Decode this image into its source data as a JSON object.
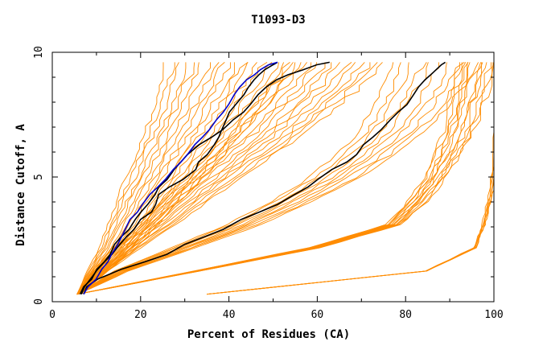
{
  "chart_data": {
    "type": "line",
    "title": "T1093-D3",
    "xlabel": "Percent of Residues (CA)",
    "ylabel": "Distance Cutoff, A",
    "xlim": [
      0,
      100
    ],
    "ylim": [
      0,
      10
    ],
    "x_ticks": [
      0,
      20,
      40,
      60,
      80,
      100
    ],
    "y_ticks": [
      0,
      5,
      10
    ],
    "x_tick_labels": [
      "0",
      "20",
      "40",
      "60",
      "80",
      "100"
    ],
    "y_tick_labels": [
      "0",
      "5",
      "10"
    ],
    "grid": false,
    "legend": "none",
    "colors": {
      "background_series": "#ff8c00",
      "highlight_black": "#000000",
      "highlight_blue": "#0000cc",
      "axis": "#000000"
    },
    "background_bands": [
      {
        "count": 20,
        "x_base": [
          5.6,
          7.9,
          10.6,
          12.6,
          14.5,
          16.8,
          18.6,
          20.8,
          22.6,
          24.1,
          26.0
        ],
        "spread": 30,
        "y_top": 9.6
      },
      {
        "count": 14,
        "x_base": [
          5.6,
          9,
          14,
          19.5,
          24.5,
          30,
          35.5,
          41,
          45.5,
          50,
          53.5
        ],
        "spread": 22,
        "y_top": 9.6
      },
      {
        "count": 10,
        "x_base": [
          5.6,
          14,
          27,
          39.5,
          49.5,
          58,
          64.5,
          69.5,
          72.5,
          75,
          77
        ],
        "spread": 20,
        "y_top": 9.6
      },
      {
        "count": 12,
        "x_base": [
          5.6,
          32,
          58,
          75.5,
          80.5,
          84,
          86.5,
          88.5,
          89.7,
          90.5,
          91.5
        ],
        "spread": 9,
        "y_top": 9.6
      },
      {
        "count": 6,
        "x_base": [
          35,
          84.5,
          95.5,
          97.5,
          98.5,
          99.2,
          99.6,
          99.8,
          99.9,
          100,
          100
        ],
        "spread": 1.5,
        "y_top": 9.6
      }
    ],
    "series": [
      {
        "color": "black",
        "x": [
          6.6,
          7.3,
          8.6,
          10.3,
          11.8,
          13.1,
          14.1,
          15.6,
          17.4,
          18.8,
          20.1,
          21.6,
          23.3,
          24.1,
          26.0,
          27.6,
          29.1,
          30.6,
          33.3,
          36.1,
          38.6,
          41.0,
          43.3,
          44.8,
          46.6,
          48.4,
          50.8,
          53.4,
          56.8,
          59.9,
          62.8
        ],
        "y": [
          0.3,
          0.6,
          0.9,
          1.3,
          1.6,
          1.9,
          2.3,
          2.6,
          2.9,
          3.3,
          3.6,
          3.9,
          4.3,
          4.6,
          4.9,
          5.3,
          5.6,
          5.9,
          6.3,
          6.6,
          6.9,
          7.3,
          7.6,
          7.9,
          8.3,
          8.6,
          8.9,
          9.1,
          9.3,
          9.5,
          9.6
        ]
      },
      {
        "color": "black",
        "x": [
          6.3,
          7.1,
          8.9,
          10.1,
          11.8,
          13.5,
          15.3,
          16.8,
          18.5,
          20.0,
          22.5,
          23.4,
          24.1,
          26.5,
          29.6,
          32.5,
          33.1,
          35.1,
          36.7,
          37.7,
          38.4,
          39.4,
          40.1,
          41.5,
          43.4,
          44.4,
          45.7,
          46.8,
          48.1,
          50.0,
          51.0
        ],
        "y": [
          0.3,
          0.6,
          0.9,
          1.3,
          1.6,
          1.9,
          2.3,
          2.6,
          2.9,
          3.3,
          3.6,
          3.9,
          4.3,
          4.6,
          4.9,
          5.3,
          5.6,
          5.9,
          6.3,
          6.6,
          6.9,
          7.3,
          7.6,
          7.9,
          8.3,
          8.6,
          8.9,
          9.1,
          9.3,
          9.5,
          9.6
        ]
      },
      {
        "color": "black",
        "x": [
          7.1,
          7.8,
          10.2,
          15.6,
          21.0,
          26.0,
          30.0,
          34.4,
          38.7,
          42.8,
          47.0,
          51.0,
          54.9,
          57.9,
          60.1,
          63.3,
          66.7,
          68.9,
          70.5,
          72.6,
          74.5,
          76.6,
          78.3,
          80.3,
          81.8,
          82.9,
          84.4,
          85.7,
          86.9,
          88.1,
          89.0
        ],
        "y": [
          0.3,
          0.6,
          0.9,
          1.3,
          1.6,
          1.9,
          2.3,
          2.6,
          2.9,
          3.3,
          3.6,
          3.9,
          4.3,
          4.6,
          4.9,
          5.3,
          5.6,
          5.9,
          6.3,
          6.6,
          6.9,
          7.3,
          7.6,
          7.9,
          8.3,
          8.6,
          8.9,
          9.1,
          9.3,
          9.5,
          9.6
        ]
      },
      {
        "color": "blue",
        "x": [
          7.1,
          8.1,
          9.9,
          11.2,
          12.6,
          13.4,
          14.8,
          15.7,
          16.5,
          17.6,
          19.3,
          20.4,
          22.1,
          23.9,
          25.6,
          27.4,
          29.1,
          30.6,
          32.3,
          34.0,
          35.6,
          37.2,
          38.7,
          39.9,
          41.2,
          42.4,
          44.0,
          45.8,
          47.1,
          49.0,
          51.0
        ],
        "y": [
          0.3,
          0.6,
          0.9,
          1.3,
          1.6,
          1.9,
          2.3,
          2.6,
          2.9,
          3.3,
          3.6,
          3.9,
          4.3,
          4.6,
          4.9,
          5.3,
          5.6,
          5.9,
          6.3,
          6.6,
          6.9,
          7.3,
          7.6,
          7.9,
          8.3,
          8.6,
          8.9,
          9.1,
          9.3,
          9.5,
          9.6
        ]
      }
    ]
  }
}
